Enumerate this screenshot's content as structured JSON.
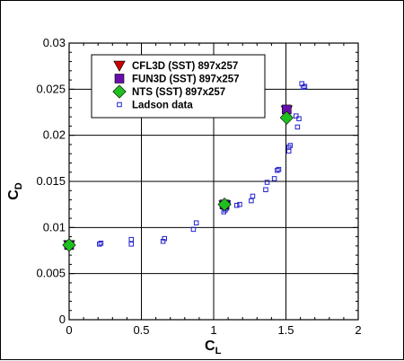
{
  "chart_data": {
    "type": "scatter",
    "xlabel": "C",
    "xlabel_subscript": "L",
    "ylabel": "C",
    "ylabel_subscript": "D",
    "xlim": [
      0,
      2
    ],
    "ylim": [
      0,
      0.03
    ],
    "xticks": [
      0,
      0.5,
      1,
      1.5,
      2
    ],
    "xtick_labels": [
      "0",
      "0.5",
      "1",
      "1.5",
      "2"
    ],
    "yticks": [
      0,
      0.005,
      0.01,
      0.015,
      0.02,
      0.025,
      0.03
    ],
    "ytick_labels": [
      "0",
      "0.005",
      "0.01",
      "0.015",
      "0.02",
      "0.025",
      "0.03"
    ],
    "grid": true,
    "legend_position": "top-left",
    "series": [
      {
        "name": "CFL3D (SST) 897x257",
        "marker": "triangle-down",
        "color": "#cc0000",
        "filled": true,
        "x": [
          0.0,
          1.075,
          1.505
        ],
        "y": [
          0.0081,
          0.0124,
          0.0227
        ]
      },
      {
        "name": "FUN3D (SST) 897x257",
        "marker": "square",
        "color": "#6a0dad",
        "filled": true,
        "x": [
          0.0,
          1.075,
          1.505
        ],
        "y": [
          0.0081,
          0.0125,
          0.0228
        ]
      },
      {
        "name": "NTS (SST) 897x257",
        "marker": "diamond",
        "color": "#1fbf1f",
        "filled": true,
        "x": [
          0.0,
          1.075,
          1.505
        ],
        "y": [
          0.0081,
          0.0125,
          0.0219
        ]
      },
      {
        "name": "Ladson data",
        "marker": "square",
        "color": "#2222cc",
        "filled": false,
        "x": [
          0.0,
          0.0,
          0.21,
          0.22,
          0.43,
          0.43,
          0.65,
          0.66,
          0.86,
          0.88,
          1.07,
          1.08,
          1.09,
          1.1,
          1.16,
          1.18,
          1.26,
          1.27,
          1.36,
          1.37,
          1.42,
          1.44,
          1.45,
          1.52,
          1.52,
          1.53,
          1.57,
          1.58,
          1.59,
          1.61,
          1.62,
          1.63
        ],
        "y": [
          0.0081,
          0.0082,
          0.0082,
          0.0083,
          0.0082,
          0.0087,
          0.0085,
          0.0088,
          0.0098,
          0.0105,
          0.0117,
          0.0119,
          0.0121,
          0.0127,
          0.0124,
          0.0125,
          0.0129,
          0.0134,
          0.0141,
          0.0149,
          0.0153,
          0.0162,
          0.0163,
          0.0183,
          0.0187,
          0.0189,
          0.0221,
          0.0209,
          0.0218,
          0.0256,
          0.0252,
          0.0253
        ]
      }
    ]
  }
}
